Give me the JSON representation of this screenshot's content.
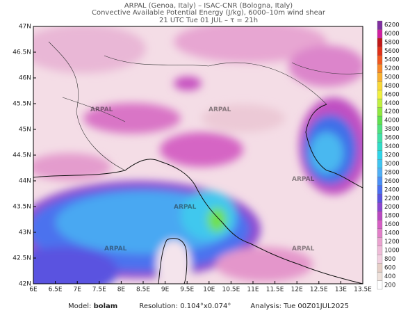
{
  "header": {
    "line1": "ARPAL (Genoa, Italy)  –  ISAC-CNR (Bologna, Italy)",
    "line2": "Convective Available Potential Energy (J/kg), 6000–10m wind shear",
    "line3": "21 UTC Tue 01 JUL  –  τ = 21h"
  },
  "map": {
    "watermark": "ARPAL",
    "lat_labels": [
      "42N",
      "42.5N",
      "43N",
      "43.5N",
      "44N",
      "44.5N",
      "45N",
      "45.5N",
      "46N",
      "46.5N",
      "47N"
    ],
    "lon_labels": [
      "6E",
      "6.5E",
      "7E",
      "7.5E",
      "8E",
      "8.5E",
      "9E",
      "9.5E",
      "10E",
      "10.5E",
      "11E",
      "11.5E",
      "12E",
      "12.5E",
      "13E",
      "13.5E"
    ]
  },
  "colorbar": {
    "levels": [
      200,
      400,
      600,
      800,
      1000,
      1200,
      1400,
      1600,
      1800,
      2000,
      2200,
      2400,
      2600,
      2800,
      3000,
      3200,
      3400,
      3600,
      3800,
      4000,
      4200,
      4400,
      4600,
      4800,
      5000,
      5200,
      5400,
      5600,
      5800,
      6000,
      6200
    ],
    "colors": [
      "#ffffff",
      "#efe2dc",
      "#e6cfc6",
      "#f2d0e0",
      "#efbcd8",
      "#eaa3cf",
      "#e27fc8",
      "#d65fc4",
      "#b848c0",
      "#8b46d0",
      "#5a52e0",
      "#4a6ef0",
      "#4b8ff5",
      "#50aff5",
      "#40c4f0",
      "#30d4e8",
      "#30dcc8",
      "#40e0a8",
      "#50e080",
      "#60e050",
      "#90e840",
      "#c0f040",
      "#f0f040",
      "#f8d838",
      "#f8b030",
      "#f88828",
      "#f05820",
      "#e03018",
      "#c01818",
      "#d020a0",
      "#8030a0"
    ]
  },
  "footer": {
    "model_label": "Model:",
    "model": "bolam",
    "res_label": "Resolution:",
    "res": "0.104°x0.074°",
    "analysis_label": "Analysis:",
    "analysis": "Tue 00Z01JUL2025"
  }
}
